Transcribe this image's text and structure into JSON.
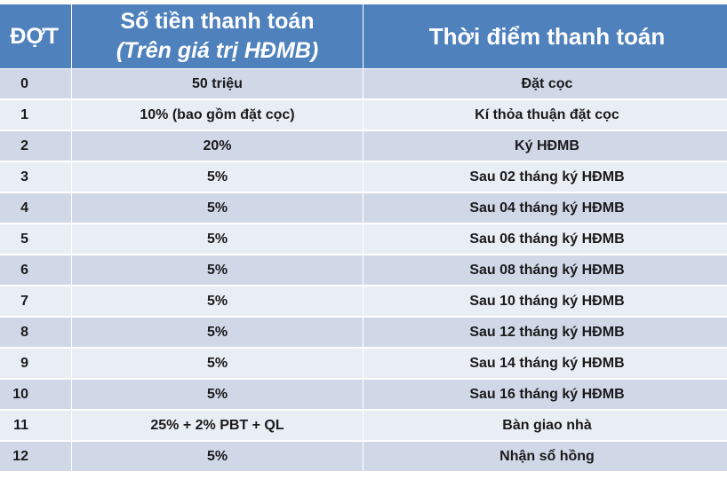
{
  "header": {
    "col_1": "ĐỢT",
    "col_2_line1": "Số tiền thanh toán",
    "col_2_line2": "(Trên giá trị HĐMB)",
    "col_3": "Thời điểm thanh toán"
  },
  "rows": [
    {
      "dot": "0",
      "amount": "50 triệu",
      "timing": "Đặt cọc"
    },
    {
      "dot": "1",
      "amount": "10% (bao gồm đặt cọc)",
      "timing": "Kí thỏa thuận đặt cọc"
    },
    {
      "dot": "2",
      "amount": "20%",
      "timing": "Ký HĐMB"
    },
    {
      "dot": "3",
      "amount": "5%",
      "timing": "Sau 02 tháng ký HĐMB"
    },
    {
      "dot": "4",
      "amount": "5%",
      "timing": "Sau 04 tháng ký HĐMB"
    },
    {
      "dot": "5",
      "amount": "5%",
      "timing": "Sau 06 tháng ký HĐMB"
    },
    {
      "dot": "6",
      "amount": "5%",
      "timing": "Sau 08 tháng ký HĐMB"
    },
    {
      "dot": "7",
      "amount": "5%",
      "timing": "Sau 10 tháng ký HĐMB"
    },
    {
      "dot": "8",
      "amount": "5%",
      "timing": "Sau 12 tháng ký HĐMB"
    },
    {
      "dot": "9",
      "amount": "5%",
      "timing": "Sau 14 tháng ký HĐMB"
    },
    {
      "dot": "10",
      "amount": "5%",
      "timing": "Sau 16 tháng ký HĐMB"
    },
    {
      "dot": "11",
      "amount": "25%  + 2% PBT + QL",
      "timing": "Bàn giao nhà"
    },
    {
      "dot": "12",
      "amount": "5%",
      "timing": "Nhận sổ hồng"
    }
  ],
  "colors": {
    "header_bg": "#4f81bd",
    "row_odd": "#d0d8e8",
    "row_even": "#e9edf4"
  }
}
